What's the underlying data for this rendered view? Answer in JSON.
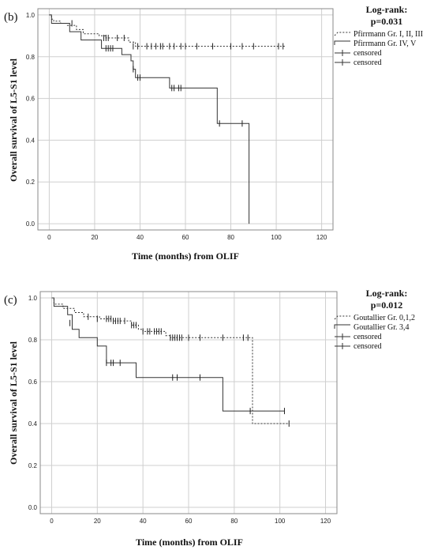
{
  "chart_data": [
    {
      "type": "line",
      "panel_label": "(b)",
      "xlabel": "Time (months) from OLIF",
      "ylabel": "Overall survival of L5-S1 level",
      "xlim": [
        -5,
        125
      ],
      "ylim": [
        -0.03,
        1.03
      ],
      "xticks": [
        0,
        20,
        40,
        60,
        80,
        100,
        120
      ],
      "yticks": [
        0.0,
        0.2,
        0.4,
        0.6,
        0.8,
        1.0
      ],
      "grid": true,
      "legend_title": "Log-rank:",
      "legend_subtitle": "p=0.031",
      "legend_position": "right",
      "legend_entries": [
        "Pfirrmann Gr. I, II, III",
        "Pfirrmann Gr. IV, V",
        "censored",
        "censored"
      ],
      "series": [
        {
          "name": "Pfirrmann Gr. I, II, III",
          "style": "dotted",
          "steps": [
            [
              0,
              1.0
            ],
            [
              1,
              0.98
            ],
            [
              2,
              0.97
            ],
            [
              5,
              0.96
            ],
            [
              8,
              0.95
            ],
            [
              12,
              0.93
            ],
            [
              15,
              0.91
            ],
            [
              22,
              0.9
            ],
            [
              25,
              0.89
            ],
            [
              35,
              0.87
            ],
            [
              38,
              0.85
            ],
            [
              104,
              0.85
            ]
          ],
          "censored": [
            [
              24,
              0.89
            ],
            [
              25,
              0.89
            ],
            [
              26,
              0.89
            ],
            [
              30,
              0.89
            ],
            [
              33,
              0.89
            ],
            [
              37,
              0.85
            ],
            [
              39,
              0.85
            ],
            [
              43,
              0.85
            ],
            [
              45,
              0.85
            ],
            [
              47,
              0.85
            ],
            [
              49,
              0.85
            ],
            [
              50,
              0.85
            ],
            [
              53,
              0.85
            ],
            [
              55,
              0.85
            ],
            [
              58,
              0.85
            ],
            [
              60,
              0.85
            ],
            [
              65,
              0.85
            ],
            [
              72,
              0.85
            ],
            [
              80,
              0.85
            ],
            [
              85,
              0.85
            ],
            [
              90,
              0.85
            ],
            [
              101,
              0.85
            ],
            [
              103,
              0.85
            ]
          ]
        },
        {
          "name": "Pfirrmann Gr. IV, V",
          "style": "solid",
          "steps": [
            [
              0,
              1.0
            ],
            [
              1,
              0.96
            ],
            [
              9,
              0.92
            ],
            [
              14,
              0.88
            ],
            [
              23,
              0.84
            ],
            [
              32,
              0.81
            ],
            [
              36,
              0.78
            ],
            [
              37,
              0.74
            ],
            [
              38,
              0.7
            ],
            [
              53,
              0.65
            ],
            [
              74,
              0.48
            ],
            [
              88,
              0.0
            ]
          ],
          "censored": [
            [
              10,
              0.96
            ],
            [
              25,
              0.84
            ],
            [
              26,
              0.84
            ],
            [
              27,
              0.84
            ],
            [
              28,
              0.84
            ],
            [
              37,
              0.74
            ],
            [
              39,
              0.7
            ],
            [
              40,
              0.7
            ],
            [
              54,
              0.65
            ],
            [
              55,
              0.65
            ],
            [
              57,
              0.65
            ],
            [
              58,
              0.65
            ],
            [
              75,
              0.48
            ],
            [
              85,
              0.48
            ]
          ]
        }
      ]
    },
    {
      "type": "line",
      "panel_label": "(c)",
      "xlabel": "Time (months) from OLIF",
      "ylabel": "Overall survival of L5-S1 level",
      "xlim": [
        -5,
        125
      ],
      "ylim": [
        -0.03,
        1.03
      ],
      "xticks": [
        0,
        20,
        40,
        60,
        80,
        100,
        120
      ],
      "yticks": [
        0.0,
        0.2,
        0.4,
        0.6,
        0.8,
        1.0
      ],
      "grid": true,
      "legend_title": "Log-rank:",
      "legend_subtitle": "p=0.012",
      "legend_position": "right",
      "legend_entries": [
        "Goutallier Gr. 0,1,2",
        "Goutallier Gr. 3,4",
        "censored",
        "censored"
      ],
      "series": [
        {
          "name": "Goutallier Gr. 0,1,2",
          "style": "dotted",
          "steps": [
            [
              0,
              1.0
            ],
            [
              1,
              0.97
            ],
            [
              5,
              0.95
            ],
            [
              10,
              0.93
            ],
            [
              14,
              0.91
            ],
            [
              21,
              0.9
            ],
            [
              27,
              0.89
            ],
            [
              35,
              0.87
            ],
            [
              38,
              0.85
            ],
            [
              40,
              0.84
            ],
            [
              50,
              0.82
            ],
            [
              52,
              0.81
            ],
            [
              88,
              0.4
            ],
            [
              104,
              0.4
            ]
          ],
          "censored": [
            [
              16,
              0.91
            ],
            [
              20,
              0.9
            ],
            [
              24,
              0.9
            ],
            [
              25,
              0.9
            ],
            [
              26,
              0.9
            ],
            [
              27,
              0.89
            ],
            [
              28,
              0.89
            ],
            [
              29,
              0.89
            ],
            [
              30,
              0.89
            ],
            [
              32,
              0.89
            ],
            [
              35,
              0.87
            ],
            [
              36,
              0.87
            ],
            [
              37,
              0.87
            ],
            [
              40,
              0.84
            ],
            [
              42,
              0.84
            ],
            [
              43,
              0.84
            ],
            [
              45,
              0.84
            ],
            [
              46,
              0.84
            ],
            [
              47,
              0.84
            ],
            [
              48,
              0.84
            ],
            [
              52,
              0.81
            ],
            [
              53,
              0.81
            ],
            [
              54,
              0.81
            ],
            [
              55,
              0.81
            ],
            [
              56,
              0.81
            ],
            [
              57,
              0.81
            ],
            [
              60,
              0.81
            ],
            [
              65,
              0.81
            ],
            [
              75,
              0.81
            ],
            [
              84,
              0.81
            ],
            [
              86,
              0.81
            ],
            [
              104,
              0.4
            ]
          ]
        },
        {
          "name": "Goutallier Gr. 3,4",
          "style": "solid",
          "steps": [
            [
              0,
              1.0
            ],
            [
              1,
              0.96
            ],
            [
              7,
              0.92
            ],
            [
              9,
              0.85
            ],
            [
              12,
              0.81
            ],
            [
              20,
              0.77
            ],
            [
              24,
              0.69
            ],
            [
              37,
              0.62
            ],
            [
              75,
              0.46
            ],
            [
              102,
              0.46
            ]
          ],
          "censored": [
            [
              8,
              0.88
            ],
            [
              24,
              0.69
            ],
            [
              26,
              0.69
            ],
            [
              27,
              0.69
            ],
            [
              30,
              0.69
            ],
            [
              53,
              0.62
            ],
            [
              55,
              0.62
            ],
            [
              65,
              0.62
            ],
            [
              87,
              0.46
            ],
            [
              102,
              0.46
            ]
          ]
        }
      ]
    }
  ]
}
